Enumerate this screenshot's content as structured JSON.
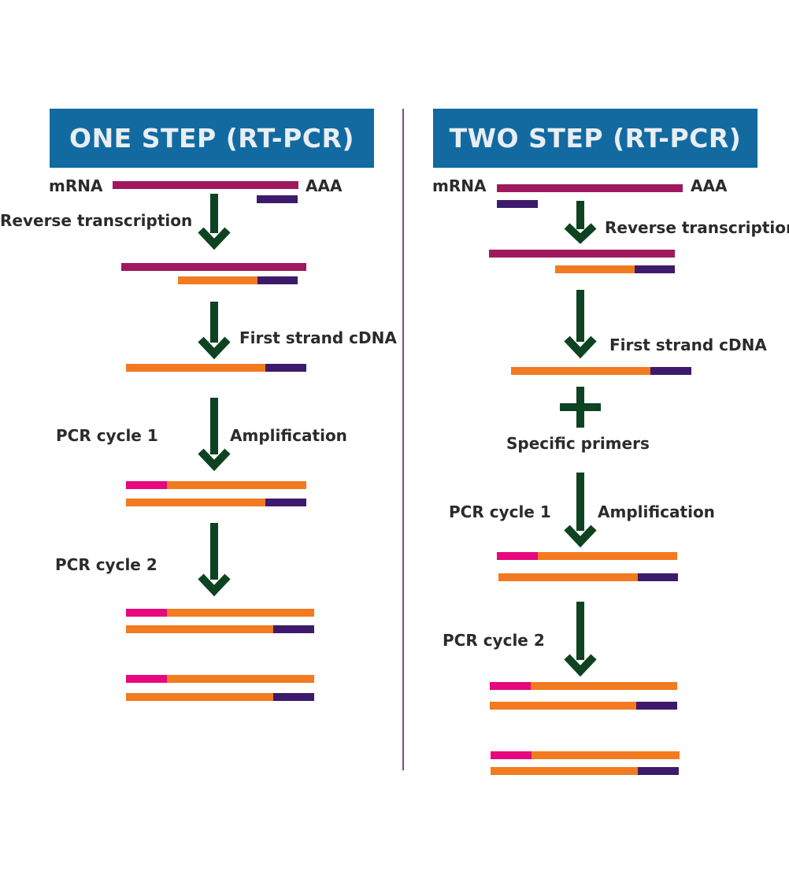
{
  "left": {
    "title": "ONE STEP (RT-PCR)",
    "mrna": "mRNA",
    "poly_a": "AAA",
    "reverse_transcription": "Reverse transcription",
    "first_strand": "First strand cDNA",
    "pcr_cycle_1": "PCR cycle 1",
    "amplification": "Amplification",
    "pcr_cycle_2": "PCR cycle 2"
  },
  "right": {
    "title": "TWO STEP (RT-PCR)",
    "mrna": "mRNA",
    "poly_a": "AAA",
    "reverse_transcription": "Reverse transcription",
    "first_strand": "First strand cDNA",
    "specific_primers": "Specific primers",
    "pcr_cycle_1": "PCR cycle 1",
    "amplification": "Amplification",
    "pcr_cycle_2": "PCR cycle 2"
  },
  "colors": {
    "header": "#126aa1",
    "mrna": "#a0195f",
    "primer": "#3d1a6b",
    "cdna": "#f27a20",
    "new_primer": "#e6087c",
    "arrow": "#0e4322"
  }
}
